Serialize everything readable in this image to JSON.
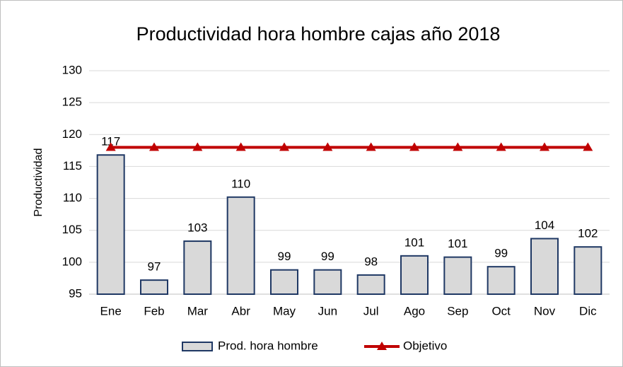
{
  "chart_data": {
    "type": "bar",
    "title": "Productividad hora hombre cajas año 2018",
    "y_label": "Productividad",
    "categories": [
      "Ene",
      "Feb",
      "Mar",
      "Abr",
      "May",
      "Jun",
      "Jul",
      "Ago",
      "Sep",
      "Oct",
      "Nov",
      "Dic"
    ],
    "series": [
      {
        "name": "Prod. hora hombre",
        "type": "bar",
        "color": "#d9d9d9",
        "edge_color": "#1f3864",
        "values": [
          116.8,
          97.2,
          103.3,
          110.2,
          98.8,
          98.8,
          98.0,
          101.0,
          100.8,
          99.3,
          103.7,
          102.4
        ],
        "value_labels": [
          "117",
          "97",
          "103",
          "110",
          "99",
          "99",
          "98",
          "101",
          "101",
          "99",
          "104",
          "102"
        ]
      },
      {
        "name": "Objetivo",
        "type": "line",
        "color": "#c00000",
        "values": [
          118,
          118,
          118,
          118,
          118,
          118,
          118,
          118,
          118,
          118,
          118,
          118
        ]
      }
    ],
    "ylim": [
      95,
      130
    ],
    "yticks": [
      95,
      100,
      105,
      110,
      115,
      120,
      125,
      130
    ],
    "grid": true,
    "legend": "bottom"
  }
}
